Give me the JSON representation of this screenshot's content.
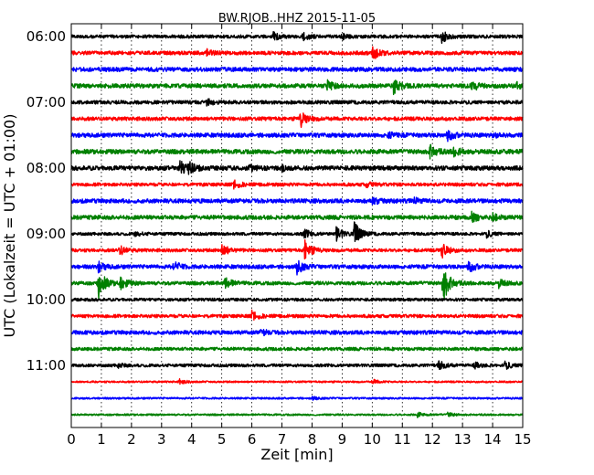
{
  "chart_data": {
    "type": "line",
    "title": "BW.RJOB..HHZ 2015-11-05",
    "xlabel": "Zeit  [min]",
    "ylabel": "UTC (Lokalzeit = UTC + 01:00)",
    "xlim": [
      0,
      15
    ],
    "x_ticks": [
      "0",
      "1",
      "2",
      "3",
      "4",
      "5",
      "6",
      "7",
      "8",
      "9",
      "10",
      "11",
      "12",
      "13",
      "14",
      "15"
    ],
    "y_ticks": [
      "06:00",
      "07:00",
      "08:00",
      "09:00",
      "10:00",
      "11:00"
    ],
    "grid": true,
    "colors": [
      "#000000",
      "#ff0000",
      "#0000ff",
      "#008000"
    ],
    "series": [
      {
        "start": "06:00",
        "color": "#000000",
        "amplitude": 0.22,
        "events": [
          [
            6.7,
            0.5
          ],
          [
            7.7,
            0.5
          ],
          [
            9.0,
            0.3
          ],
          [
            12.3,
            0.9
          ]
        ]
      },
      {
        "start": "06:15",
        "color": "#ff0000",
        "amplitude": 0.25,
        "events": [
          [
            4.5,
            0.4
          ],
          [
            10.0,
            0.9
          ]
        ]
      },
      {
        "start": "06:30",
        "color": "#0000ff",
        "amplitude": 0.28,
        "events": []
      },
      {
        "start": "06:45",
        "color": "#008000",
        "amplitude": 0.28,
        "events": [
          [
            8.5,
            0.6
          ],
          [
            10.7,
            1.1
          ],
          [
            13.3,
            0.7
          ],
          [
            14.8,
            0.4
          ]
        ]
      },
      {
        "start": "07:00",
        "color": "#000000",
        "amplitude": 0.24,
        "events": [
          [
            4.5,
            0.4
          ]
        ]
      },
      {
        "start": "07:15",
        "color": "#ff0000",
        "amplitude": 0.25,
        "events": [
          [
            7.6,
            1.2
          ]
        ]
      },
      {
        "start": "07:30",
        "color": "#0000ff",
        "amplitude": 0.28,
        "events": [
          [
            10.5,
            0.4
          ],
          [
            12.5,
            0.7
          ],
          [
            14.0,
            0.3
          ]
        ]
      },
      {
        "start": "07:45",
        "color": "#008000",
        "amplitude": 0.3,
        "events": [
          [
            11.9,
            0.9
          ],
          [
            12.7,
            0.6
          ]
        ]
      },
      {
        "start": "08:00",
        "color": "#000000",
        "amplitude": 0.3,
        "events": [
          [
            3.6,
            0.9
          ],
          [
            3.9,
            0.6
          ],
          [
            5.9,
            0.3
          ],
          [
            7.0,
            0.3
          ]
        ]
      },
      {
        "start": "08:15",
        "color": "#ff0000",
        "amplitude": 0.22,
        "events": [
          [
            5.4,
            0.5
          ],
          [
            9.8,
            0.3
          ]
        ]
      },
      {
        "start": "08:30",
        "color": "#0000ff",
        "amplitude": 0.28,
        "events": [
          [
            10.0,
            0.4
          ],
          [
            11.4,
            0.3
          ]
        ]
      },
      {
        "start": "08:45",
        "color": "#008000",
        "amplitude": 0.28,
        "events": [
          [
            13.3,
            0.6
          ],
          [
            14.0,
            0.4
          ]
        ]
      },
      {
        "start": "09:00",
        "color": "#000000",
        "amplitude": 0.2,
        "events": [
          [
            2.1,
            0.3
          ],
          [
            7.7,
            0.7
          ],
          [
            8.8,
            0.9
          ],
          [
            9.4,
            1.6
          ],
          [
            13.8,
            0.4
          ]
        ]
      },
      {
        "start": "09:15",
        "color": "#ff0000",
        "amplitude": 0.22,
        "events": [
          [
            1.6,
            0.6
          ],
          [
            5.0,
            0.9
          ],
          [
            7.75,
            1.5
          ],
          [
            12.3,
            1.1
          ]
        ]
      },
      {
        "start": "09:30",
        "color": "#0000ff",
        "amplitude": 0.26,
        "events": [
          [
            0.9,
            0.6
          ],
          [
            3.4,
            0.7
          ],
          [
            7.5,
            0.9
          ],
          [
            13.2,
            0.7
          ]
        ]
      },
      {
        "start": "09:45",
        "color": "#008000",
        "amplitude": 0.24,
        "events": [
          [
            0.9,
            2.0
          ],
          [
            1.6,
            1.0
          ],
          [
            5.1,
            0.8
          ],
          [
            12.35,
            2.6
          ],
          [
            14.2,
            0.5
          ]
        ]
      },
      {
        "start": "10:00",
        "color": "#000000",
        "amplitude": 0.2,
        "events": []
      },
      {
        "start": "10:15",
        "color": "#ff0000",
        "amplitude": 0.22,
        "events": [
          [
            6.0,
            0.6
          ]
        ]
      },
      {
        "start": "10:30",
        "color": "#0000ff",
        "amplitude": 0.26,
        "events": [
          [
            6.3,
            0.4
          ]
        ]
      },
      {
        "start": "10:45",
        "color": "#008000",
        "amplitude": 0.22,
        "events": []
      },
      {
        "start": "11:00",
        "color": "#000000",
        "amplitude": 0.2,
        "events": [
          [
            1.5,
            0.3
          ],
          [
            12.2,
            0.6
          ],
          [
            13.4,
            0.4
          ],
          [
            14.4,
            0.5
          ]
        ]
      },
      {
        "start": "11:15",
        "color": "#ff0000",
        "amplitude": 0.12,
        "events": [
          [
            3.6,
            0.3
          ],
          [
            10.0,
            0.3
          ]
        ]
      },
      {
        "start": "11:30",
        "color": "#0000ff",
        "amplitude": 0.12,
        "events": [
          [
            8.0,
            0.2
          ]
        ]
      },
      {
        "start": "11:45",
        "color": "#008000",
        "amplitude": 0.12,
        "events": [
          [
            11.5,
            0.3
          ],
          [
            12.5,
            0.3
          ]
        ]
      }
    ]
  }
}
